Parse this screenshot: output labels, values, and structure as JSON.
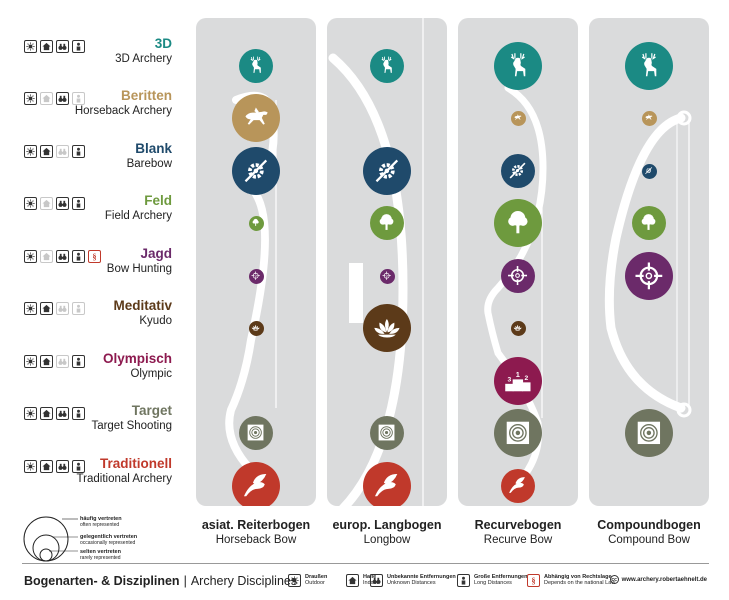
{
  "colors": {
    "3d": "#1b8a84",
    "beritten": "#b8955a",
    "blank": "#1f4a6b",
    "feld": "#6e9a3e",
    "jagd": "#6b2a6a",
    "meditativ": "#5c3a19",
    "olympisch": "#8d1a4f",
    "target": "#6f7560",
    "traditionell": "#c0392b",
    "column_bg": "#dadbdc"
  },
  "rows": [
    {
      "key": "3d",
      "title": "3D",
      "sub": "3D Archery",
      "icons": [
        "sun",
        "house",
        "binoculars",
        "person"
      ],
      "faded": []
    },
    {
      "key": "beritten",
      "title": "Beritten",
      "sub": "Horseback Archery",
      "icons": [
        "sun",
        "house",
        "binoculars",
        "person"
      ],
      "faded": [
        1,
        3
      ]
    },
    {
      "key": "blank",
      "title": "Blank",
      "sub": "Barebow",
      "icons": [
        "sun",
        "house",
        "binoculars",
        "person"
      ],
      "faded": [
        2
      ]
    },
    {
      "key": "feld",
      "title": "Feld",
      "sub": "Field Archery",
      "icons": [
        "sun",
        "house",
        "binoculars",
        "person"
      ],
      "faded": [
        1
      ]
    },
    {
      "key": "jagd",
      "title": "Jagd",
      "sub": "Bow Hunting",
      "icons": [
        "sun",
        "house",
        "binoculars",
        "person",
        "law"
      ],
      "faded": [
        1
      ]
    },
    {
      "key": "meditativ",
      "title": "Meditativ",
      "sub": "Kyudo",
      "icons": [
        "sun",
        "house",
        "binoculars",
        "person"
      ],
      "faded": [
        2,
        3
      ]
    },
    {
      "key": "olympisch",
      "title": "Olympisch",
      "sub": "Olympic",
      "icons": [
        "sun",
        "house",
        "binoculars",
        "person"
      ],
      "faded": [
        2
      ]
    },
    {
      "key": "target",
      "title": "Target",
      "sub": "Target Shooting",
      "icons": [
        "sun",
        "house",
        "binoculars",
        "person"
      ],
      "faded": []
    },
    {
      "key": "traditionell",
      "title": "Traditionell",
      "sub": "Traditional Archery",
      "icons": [
        "sun",
        "house",
        "binoculars",
        "person"
      ],
      "faded": []
    }
  ],
  "columns": [
    {
      "title": "asiat. Reiterbogen",
      "sub": "Horseback Bow",
      "cells": {
        "3d": "m",
        "beritten": "l",
        "blank": "l",
        "feld": "s",
        "jagd": "s",
        "meditativ": "s",
        "olympisch": null,
        "target": "m",
        "traditionell": "l"
      }
    },
    {
      "title": "europ. Langbogen",
      "sub": "Longbow",
      "cells": {
        "3d": "m",
        "beritten": null,
        "blank": "l",
        "feld": "m",
        "jagd": "s",
        "meditativ": "l",
        "olympisch": null,
        "target": "m",
        "traditionell": "l"
      }
    },
    {
      "title": "Recurvebogen",
      "sub": "Recurve Bow",
      "cells": {
        "3d": "l",
        "beritten": "s",
        "blank": "m",
        "feld": "l",
        "jagd": "m",
        "meditativ": "s",
        "olympisch": "l",
        "target": "l",
        "traditionell": "m"
      }
    },
    {
      "title": "Compoundbogen",
      "sub": "Compound Bow",
      "cells": {
        "3d": "l",
        "beritten": "s",
        "blank": "s",
        "feld": "m",
        "jagd": "l",
        "meditativ": null,
        "olympisch": null,
        "target": "l",
        "traditionell": null
      }
    }
  ],
  "size_legend": [
    {
      "de": "häufig vertreten",
      "en": "often represented"
    },
    {
      "de": "gelegentlich vertreten",
      "en": "occasionally represented"
    },
    {
      "de": "selten vertreten",
      "en": "rarely represented"
    }
  ],
  "footer": {
    "title_de": "Bogenarten- & Disziplinen",
    "sep": "|",
    "title_en": "Archery Disciplines",
    "keys": [
      {
        "icon": "sun",
        "de": "Draußen",
        "en": "Outdoor"
      },
      {
        "icon": "house",
        "de": "Halle",
        "en": "Indoor"
      },
      {
        "icon": "binoculars",
        "de": "Unbekannte Entfernungen",
        "en": "Unknown Distances"
      },
      {
        "icon": "person",
        "de": "Große Entfernungen",
        "en": "Long Distances"
      },
      {
        "icon": "law",
        "de": "Abhängig von Rechtslage",
        "en": "Depends on the national Law"
      }
    ],
    "cc": "cc",
    "url": "www.archery.robertaehnelt.de"
  }
}
